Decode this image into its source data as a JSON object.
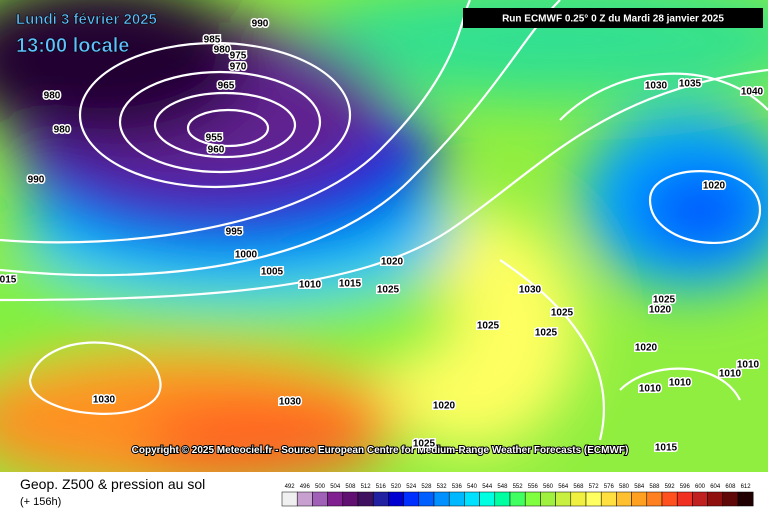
{
  "header": {
    "date": "Lundi 3 février 2025",
    "time": "13:00 locale",
    "run": "Run ECMWF 0.25° 0 Z du Mardi 28 janvier 2025"
  },
  "copyright": "Copyright © 2025 Meteociel.fr - Source European Centre for Medium-Range Weather Forecasts (ECMWF)",
  "footer": {
    "title": "Geop. Z500 & pression au sol",
    "lead": "(+ 156h)"
  },
  "legend": {
    "levels": [
      492,
      496,
      500,
      504,
      508,
      512,
      516,
      520,
      524,
      528,
      532,
      536,
      540,
      544,
      548,
      552,
      556,
      560,
      564,
      568,
      572,
      576,
      580,
      584,
      588,
      592,
      596,
      600,
      604,
      608,
      612
    ]
  },
  "isobar_labels": [
    "990",
    "985",
    "980",
    "975",
    "970",
    "965",
    "955",
    "960",
    "980",
    "980",
    "990",
    "995",
    "1000",
    "1005",
    "1010",
    "1015",
    "1025",
    "1020",
    "1030",
    "1035",
    "1040",
    "1020",
    "1030",
    "1025",
    "1025",
    "1025",
    "1025",
    "1020",
    "1020",
    "1010",
    "1010",
    "1010",
    "1010",
    "1020",
    "1030",
    "1030",
    "015",
    "1025",
    "1015"
  ]
}
